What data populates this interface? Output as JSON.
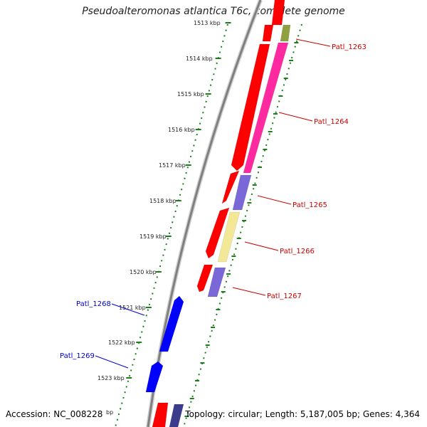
{
  "title": "Pseudoalteromonas atlantica T6c, complete genome",
  "footer": {
    "accession": "Accession: NC_008228",
    "topology": "Topology: circular; Length: 5,187,005 bp; Genes: 4,364"
  },
  "colors": {
    "backbone": "#888888",
    "tick": "#1a7f1a",
    "forward_label": "#cc0000",
    "reverse_label": "#0000cc",
    "cds_red": "#ff0000",
    "gene_magenta": "#ff2aa0",
    "gene_purple": "#7a68d8",
    "gene_yellow": "#f2e898",
    "gene_olive": "#8fa040",
    "gene_blue": "#0000ff",
    "gene_navy": "#3c3c8c"
  },
  "ticks": {
    "inner": [
      "1513 kbp",
      "1514 kbp",
      "1515 kbp",
      "1516 kbp",
      "1517 kbp",
      "1518 kbp",
      "1519 kbp",
      "1520 kbp",
      "1521 kbp",
      "1522 kbp",
      "1523 kbp",
      "bp"
    ]
  },
  "genes_forward": [
    {
      "name": "Patl_1263"
    },
    {
      "name": "Patl_1264"
    },
    {
      "name": "Patl_1265"
    },
    {
      "name": "Patl_1266"
    },
    {
      "name": "Patl_1267"
    }
  ],
  "genes_reverse": [
    {
      "name": "Patl_1268"
    },
    {
      "name": "Patl_1269"
    }
  ]
}
